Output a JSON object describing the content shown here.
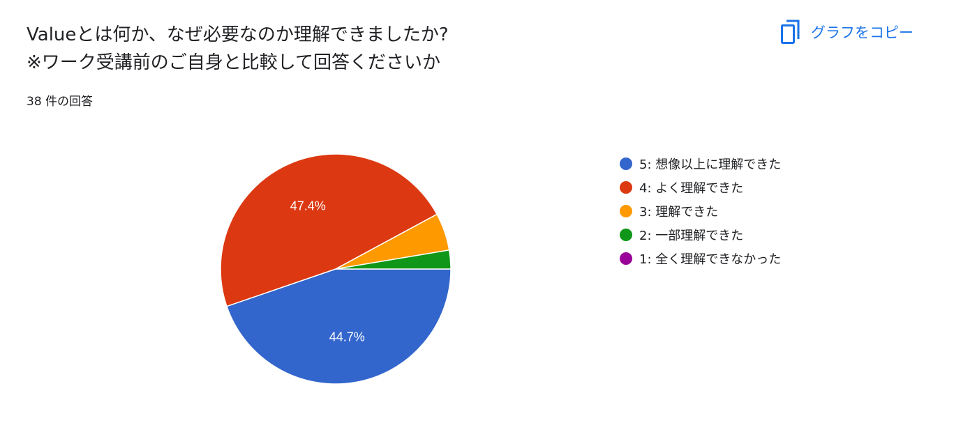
{
  "title_line1": "Valueとは何か、なぜ必要なのか理解できましたか?",
  "title_line2": "※ワーク受講前のご自身と比較して回答くださいか",
  "response_count": "38 件の回答",
  "copy_button": {
    "label": "グラフをコピー",
    "icon": "copy-icon"
  },
  "chart_data": {
    "type": "pie",
    "total": 38,
    "legend_position": "right",
    "slices": [
      {
        "label": "5: 想像以上に理解できた",
        "value": 17,
        "percent_label": "44.7%",
        "color": "#3366cc"
      },
      {
        "label": "4: よく理解できた",
        "value": 18,
        "percent_label": "47.4%",
        "color": "#dc3912"
      },
      {
        "label": "3: 理解できた",
        "value": 2,
        "percent_label": "",
        "color": "#ff9900"
      },
      {
        "label": "2: 一部理解できた",
        "value": 1,
        "percent_label": "",
        "color": "#109618"
      },
      {
        "label": "1: 全く理解できなかった",
        "value": 0,
        "percent_label": "",
        "color": "#990099"
      }
    ]
  }
}
